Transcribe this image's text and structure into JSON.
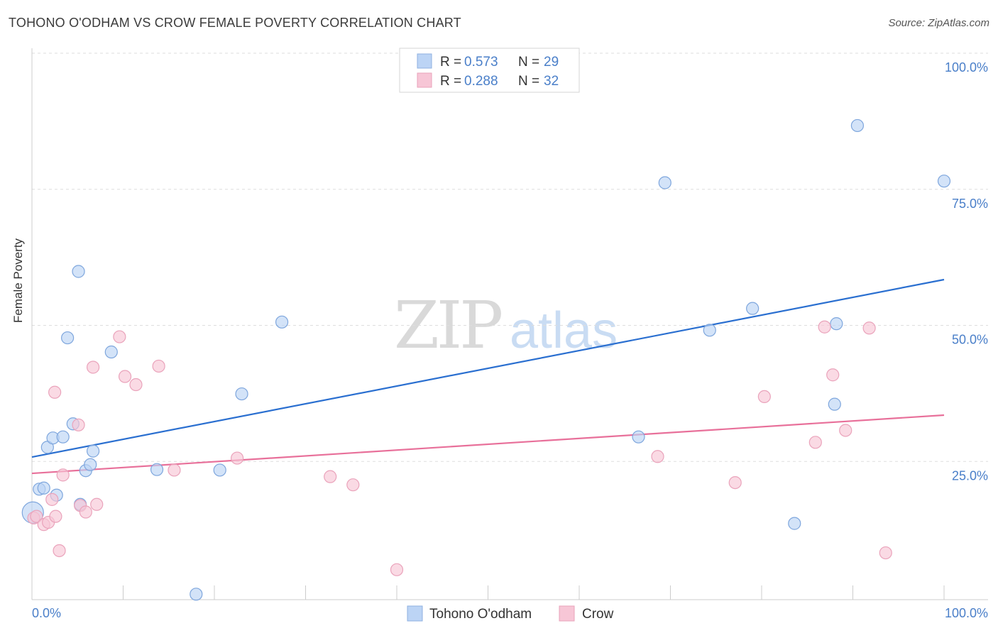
{
  "title": "TOHONO O'ODHAM VS CROW FEMALE POVERTY CORRELATION CHART",
  "source": "Source: ZipAtlas.com",
  "watermark": {
    "zip": "ZIP",
    "atlas": "atlas"
  },
  "colors": {
    "blue": "#4a7fc9",
    "blue_fill": "#bcd4f5",
    "blue_line": "#2a6fd0",
    "pink_fill": "#f7c6d6",
    "pink_line": "#e8709a",
    "grid": "#dddddd"
  },
  "legend_top": {
    "r_label": "R =",
    "n_label": "N =",
    "rows": [
      {
        "series": "Tohono O'odham",
        "r": "0.573",
        "n": "29"
      },
      {
        "series": "Crow",
        "r": "0.288",
        "n": "32"
      }
    ]
  },
  "chart_data": {
    "type": "scatter",
    "title": "TOHONO O'ODHAM VS CROW FEMALE POVERTY CORRELATION CHART",
    "xlabel": "",
    "ylabel": "Female Poverty",
    "xlim": [
      0,
      100
    ],
    "ylim": [
      0,
      100
    ],
    "x_tick_labels": [
      "0.0%",
      "100.0%"
    ],
    "y_tick_labels": [
      "25.0%",
      "50.0%",
      "75.0%",
      "100.0%"
    ],
    "y_ticks": [
      25,
      50,
      75,
      100
    ],
    "grid": true,
    "legend_position": "bottom-center",
    "series": [
      {
        "name": "Tohono O'odham",
        "r": 0.573,
        "n": 29,
        "trend": {
          "x": [
            0,
            100
          ],
          "y": [
            26.2,
            58.8
          ]
        },
        "points": [
          [
            0.1,
            16.0
          ],
          [
            0.8,
            20.3
          ],
          [
            1.3,
            20.5
          ],
          [
            1.7,
            28.0
          ],
          [
            2.3,
            29.7
          ],
          [
            2.7,
            19.2
          ],
          [
            3.4,
            29.9
          ],
          [
            3.9,
            48.1
          ],
          [
            4.5,
            32.3
          ],
          [
            5.1,
            60.3
          ],
          [
            5.3,
            17.5
          ],
          [
            5.9,
            23.7
          ],
          [
            6.4,
            24.8
          ],
          [
            6.7,
            27.3
          ],
          [
            8.7,
            45.5
          ],
          [
            13.7,
            23.9
          ],
          [
            18.0,
            1.0
          ],
          [
            20.6,
            23.8
          ],
          [
            23.0,
            37.8
          ],
          [
            27.4,
            51.0
          ],
          [
            66.5,
            29.9
          ],
          [
            69.4,
            76.6
          ],
          [
            74.3,
            49.5
          ],
          [
            79.0,
            53.5
          ],
          [
            83.6,
            14.0
          ],
          [
            88.0,
            35.9
          ],
          [
            88.2,
            50.7
          ],
          [
            90.5,
            87.1
          ],
          [
            100.0,
            76.9
          ]
        ]
      },
      {
        "name": "Crow",
        "r": 0.288,
        "n": 32,
        "trend": {
          "x": [
            0,
            100
          ],
          "y": [
            23.2,
            33.9
          ]
        },
        "points": [
          [
            0.2,
            15.0
          ],
          [
            0.5,
            15.3
          ],
          [
            1.3,
            13.8
          ],
          [
            1.8,
            14.2
          ],
          [
            2.2,
            18.4
          ],
          [
            2.5,
            38.1
          ],
          [
            2.6,
            15.3
          ],
          [
            3.0,
            9.0
          ],
          [
            3.4,
            22.9
          ],
          [
            5.1,
            32.1
          ],
          [
            5.3,
            17.3
          ],
          [
            5.9,
            16.1
          ],
          [
            6.7,
            42.7
          ],
          [
            7.1,
            17.5
          ],
          [
            9.6,
            48.3
          ],
          [
            10.2,
            41.0
          ],
          [
            11.4,
            39.5
          ],
          [
            13.9,
            42.9
          ],
          [
            15.6,
            23.8
          ],
          [
            22.5,
            26.0
          ],
          [
            32.7,
            22.6
          ],
          [
            35.2,
            21.1
          ],
          [
            40.0,
            5.5
          ],
          [
            68.6,
            26.3
          ],
          [
            77.1,
            21.5
          ],
          [
            80.3,
            37.3
          ],
          [
            85.9,
            28.9
          ],
          [
            86.9,
            50.1
          ],
          [
            87.8,
            41.3
          ],
          [
            89.2,
            31.1
          ],
          [
            91.8,
            49.9
          ],
          [
            93.6,
            8.6
          ]
        ]
      }
    ]
  }
}
